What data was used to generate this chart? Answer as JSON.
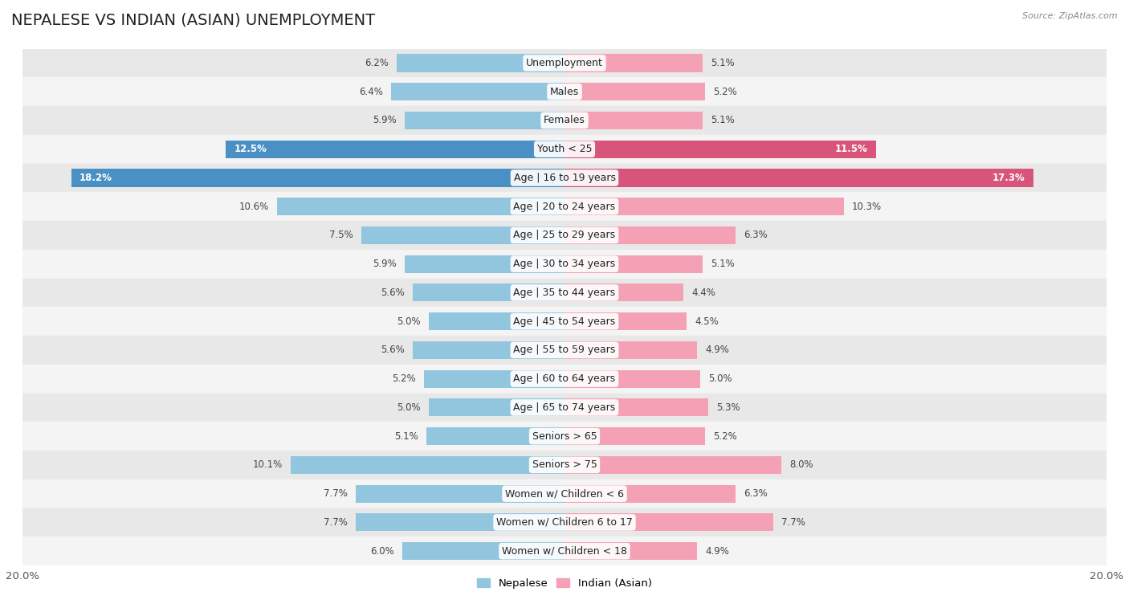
{
  "title": "NEPALESE VS INDIAN (ASIAN) UNEMPLOYMENT",
  "source": "Source: ZipAtlas.com",
  "categories": [
    "Unemployment",
    "Males",
    "Females",
    "Youth < 25",
    "Age | 16 to 19 years",
    "Age | 20 to 24 years",
    "Age | 25 to 29 years",
    "Age | 30 to 34 years",
    "Age | 35 to 44 years",
    "Age | 45 to 54 years",
    "Age | 55 to 59 years",
    "Age | 60 to 64 years",
    "Age | 65 to 74 years",
    "Seniors > 65",
    "Seniors > 75",
    "Women w/ Children < 6",
    "Women w/ Children 6 to 17",
    "Women w/ Children < 18"
  ],
  "nepalese_values": [
    6.2,
    6.4,
    5.9,
    12.5,
    18.2,
    10.6,
    7.5,
    5.9,
    5.6,
    5.0,
    5.6,
    5.2,
    5.0,
    5.1,
    10.1,
    7.7,
    7.7,
    6.0
  ],
  "indian_values": [
    5.1,
    5.2,
    5.1,
    11.5,
    17.3,
    10.3,
    6.3,
    5.1,
    4.4,
    4.5,
    4.9,
    5.0,
    5.3,
    5.2,
    8.0,
    6.3,
    7.7,
    4.9
  ],
  "nepalese_color": "#92c5de",
  "indian_color": "#f4a0b5",
  "nepalese_highlight_color": "#4a90c4",
  "indian_highlight_color": "#d9547a",
  "highlight_rows": [
    3,
    4
  ],
  "row_bg_colors": [
    "#e8e8e8",
    "#f4f4f4"
  ],
  "max_value": 20.0,
  "legend_nepalese": "Nepalese",
  "legend_indian": "Indian (Asian)",
  "bar_height": 0.62,
  "title_fontsize": 14,
  "label_fontsize": 9,
  "value_fontsize": 8.5,
  "axis_fontsize": 9.5
}
